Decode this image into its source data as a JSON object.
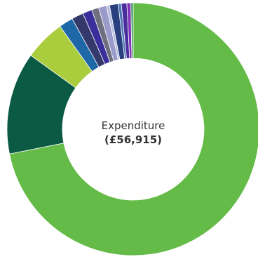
{
  "chart_data": {
    "type": "pie",
    "center_title": "Expenditure",
    "center_value": "(£56,915)",
    "slices": [
      {
        "value": 71.5,
        "color": "#64bb47"
      },
      {
        "value": 13.0,
        "color": "#0b5a43"
      },
      {
        "value": 5.2,
        "color": "#a9cd3c"
      },
      {
        "value": 1.8,
        "color": "#1f68a8"
      },
      {
        "value": 1.5,
        "color": "#333a6b"
      },
      {
        "value": 1.2,
        "color": "#3a2f9a"
      },
      {
        "value": 0.9,
        "color": "#6f6f7f"
      },
      {
        "value": 1.0,
        "color": "#9a9acb"
      },
      {
        "value": 0.4,
        "color": "#b8bfe0"
      },
      {
        "value": 1.1,
        "color": "#2a3f7e"
      },
      {
        "value": 0.4,
        "color": "#4e77b8"
      },
      {
        "value": 0.7,
        "color": "#4a2e9e"
      },
      {
        "value": 0.5,
        "color": "#7f33b6"
      },
      {
        "value": 0.3,
        "color": "#4a9a6b"
      }
    ]
  }
}
